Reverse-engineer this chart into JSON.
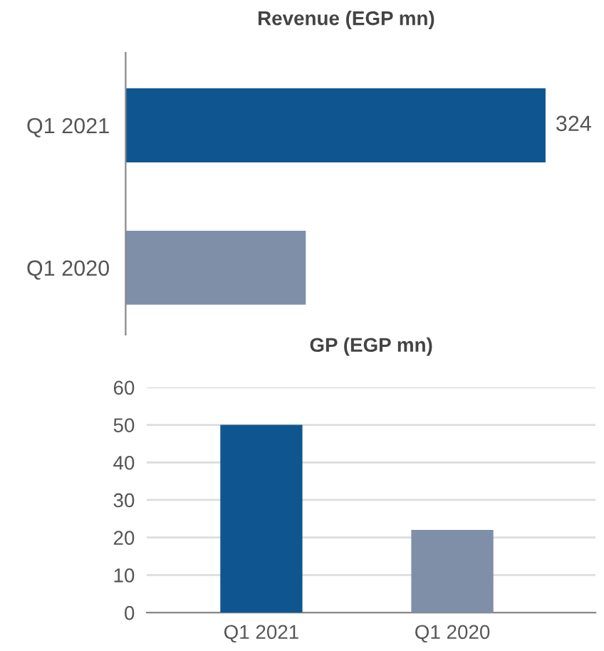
{
  "chart_data": [
    {
      "type": "bar",
      "orientation": "horizontal",
      "title": "Revenue (EGP mn)",
      "categories": [
        "Q1 2021",
        "Q1 2020"
      ],
      "values": [
        324,
        139
      ],
      "colors": [
        "#0f5690",
        "#7f8fa8"
      ],
      "value_labels": [
        "324",
        null
      ],
      "tick_labels": "y",
      "grid": false,
      "legend": false
    },
    {
      "type": "bar",
      "title": "GP (EGP mn)",
      "categories": [
        "Q1 2021",
        "Q1 2020"
      ],
      "values": [
        50,
        22
      ],
      "colors": [
        "#0f5690",
        "#7f8fa8"
      ],
      "ylim": [
        0,
        60
      ],
      "yticks": [
        0,
        10,
        20,
        30,
        40,
        50,
        60
      ],
      "grid": "y",
      "legend": false
    }
  ]
}
